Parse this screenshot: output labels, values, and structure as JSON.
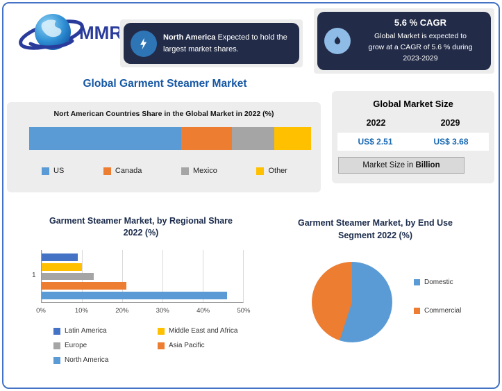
{
  "logo": {
    "brand": "MMR"
  },
  "page_title": "Global Garment Steamer Market",
  "callout_na": {
    "bold": "North America",
    "rest": " Expected to hold the largest market shares."
  },
  "callout_cagr": {
    "heading": "5.6 % CAGR",
    "body": "Global Market is expected to grow at a CAGR of 5.6 % during 2023-2029"
  },
  "market_size": {
    "title": "Global Market Size",
    "year_left": "2022",
    "year_right": "2029",
    "value_left": "US$ 2.51",
    "value_right": "US$ 3.68",
    "note_prefix": "Market Size in ",
    "note_bold": "Billion"
  },
  "chart_data": [
    {
      "type": "bar",
      "subtype": "stacked-horizontal",
      "title": "Nort American Countries Share in the Global Market in 2022 (%)",
      "unit": "%",
      "series": [
        {
          "name": "US",
          "value": 54,
          "color": "#5B9BD5"
        },
        {
          "name": "Canada",
          "value": 18,
          "color": "#ED7D31"
        },
        {
          "name": "Mexico",
          "value": 15,
          "color": "#A5A5A5"
        },
        {
          "name": "Other",
          "value": 13,
          "color": "#FFC000"
        }
      ],
      "legend_position": "bottom"
    },
    {
      "type": "bar",
      "subtype": "horizontal",
      "title": "Garment Steamer Market, by Regional Share 2022 (%)",
      "categories": [
        "Latin America",
        "Middle East and Africa",
        "Europe",
        "Asia Pacific",
        "North America"
      ],
      "values": [
        9,
        10,
        13,
        21,
        46
      ],
      "colors": [
        "#4472C4",
        "#FFC000",
        "#A5A5A5",
        "#ED7D31",
        "#5B9BD5"
      ],
      "xlim": [
        0,
        50
      ],
      "xticks": [
        "0%",
        "10%",
        "20%",
        "30%",
        "40%",
        "50%"
      ],
      "ytick": "1",
      "grid": true,
      "legend_position": "bottom"
    },
    {
      "type": "pie",
      "title": "Garment Steamer Market, by End Use Segment 2022 (%)",
      "labels": [
        "Domestic",
        "Commercial"
      ],
      "values": [
        55,
        45
      ],
      "colors": [
        "#5B9BD5",
        "#ED7D31"
      ],
      "legend_position": "right"
    }
  ]
}
